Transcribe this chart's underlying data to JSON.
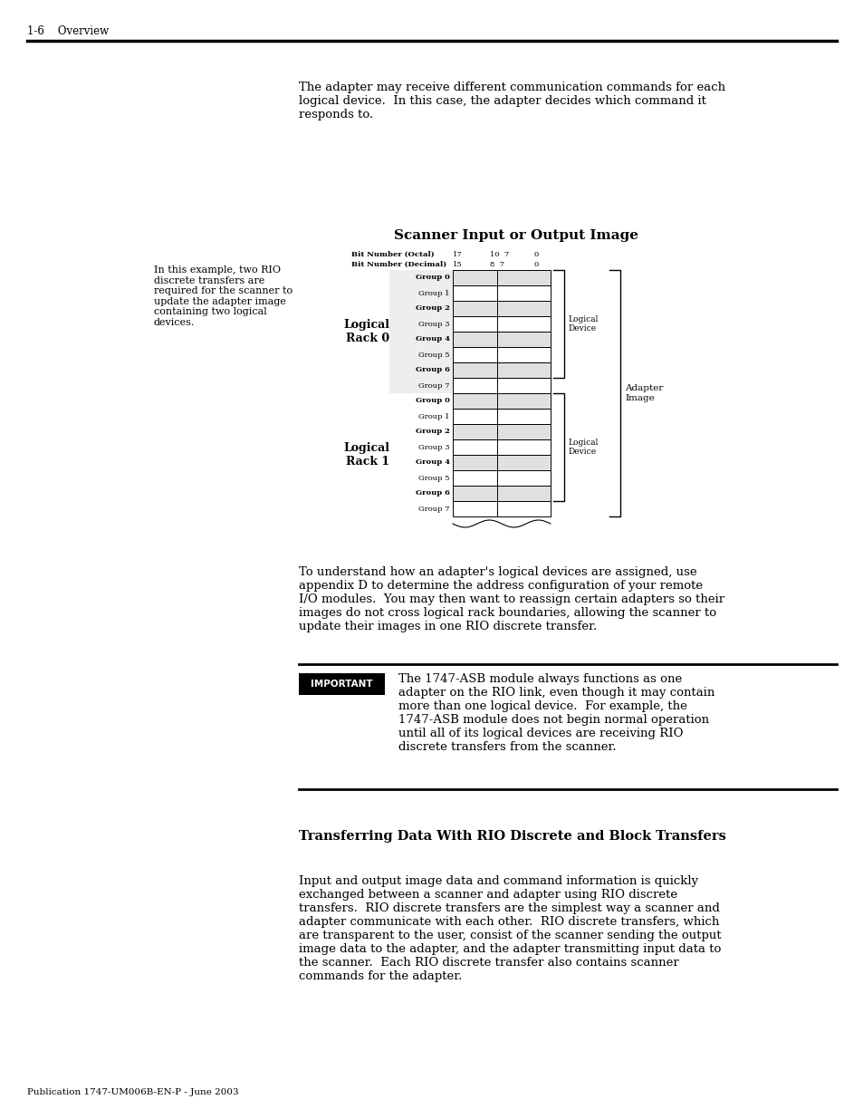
{
  "page_bg": "#ffffff",
  "page_width": 9.54,
  "page_height": 12.35,
  "dpi": 100,
  "header_text": "1-6    Overview",
  "para1": "The adapter may receive different communication commands for each\nlogical device.  In this case, the adapter decides which command it\nresponds to.",
  "diagram_title": "Scanner Input or Output Image",
  "bit_octal_label": "Bit Number (Octal)",
  "bit_decimal_label": "Bit Number (Decimal)",
  "logical_rack0_label": "Logical\nRack 0",
  "logical_rack1_label": "Logical\nRack 1",
  "rack0_groups": [
    "Group 0",
    "Group 1",
    "Group 2",
    "Group 3",
    "Group 4",
    "Group 5",
    "Group 6",
    "Group 7"
  ],
  "rack0_bold": [
    0,
    2,
    4,
    6
  ],
  "rack1_groups": [
    "Group 0",
    "Group 1",
    "Group 2",
    "Group 3",
    "Group 4",
    "Group 5",
    "Group 6",
    "Group 7"
  ],
  "rack1_bold": [
    0,
    2,
    4,
    6
  ],
  "logical_device0_label": "Logical\nDevice",
  "logical_device1_label": "Logical\nDevice",
  "adapter_image_label": "Adapter\nImage",
  "left_note": "In this example, two RIO\ndiscrete transfers are\nrequired for the scanner to\nupdate the adapter image\ncontaining two logical\ndevices.",
  "para2": "To understand how an adapter's logical devices are assigned, use\nappendix D to determine the address configuration of your remote\nI/O modules.  You may then want to reassign certain adapters so their\nimages do not cross logical rack boundaries, allowing the scanner to\nupdate their images in one RIO discrete transfer.",
  "important_box_label": "IMPORTANT",
  "important_text": "The 1747-ASB module always functions as one\nadapter on the RIO link, even though it may contain\nmore than one logical device.  For example, the\n1747-ASB module does not begin normal operation\nuntil all of its logical devices are receiving RIO\ndiscrete transfers from the scanner.",
  "section_title": "Transferring Data With RIO Discrete and Block Transfers",
  "para3": "Input and output image data and command information is quickly\nexchanged between a scanner and adapter using RIO discrete\ntransfers.  RIO discrete transfers are the simplest way a scanner and\nadapter communicate with each other.  RIO discrete transfers, which\nare transparent to the user, consist of the scanner sending the output\nimage data to the adapter, and the adapter transmitting input data to\nthe scanner.  Each RIO discrete transfer also contains scanner\ncommands for the adapter.",
  "footer_text": "Publication 1747-UM006B-EN-P - June 2003"
}
